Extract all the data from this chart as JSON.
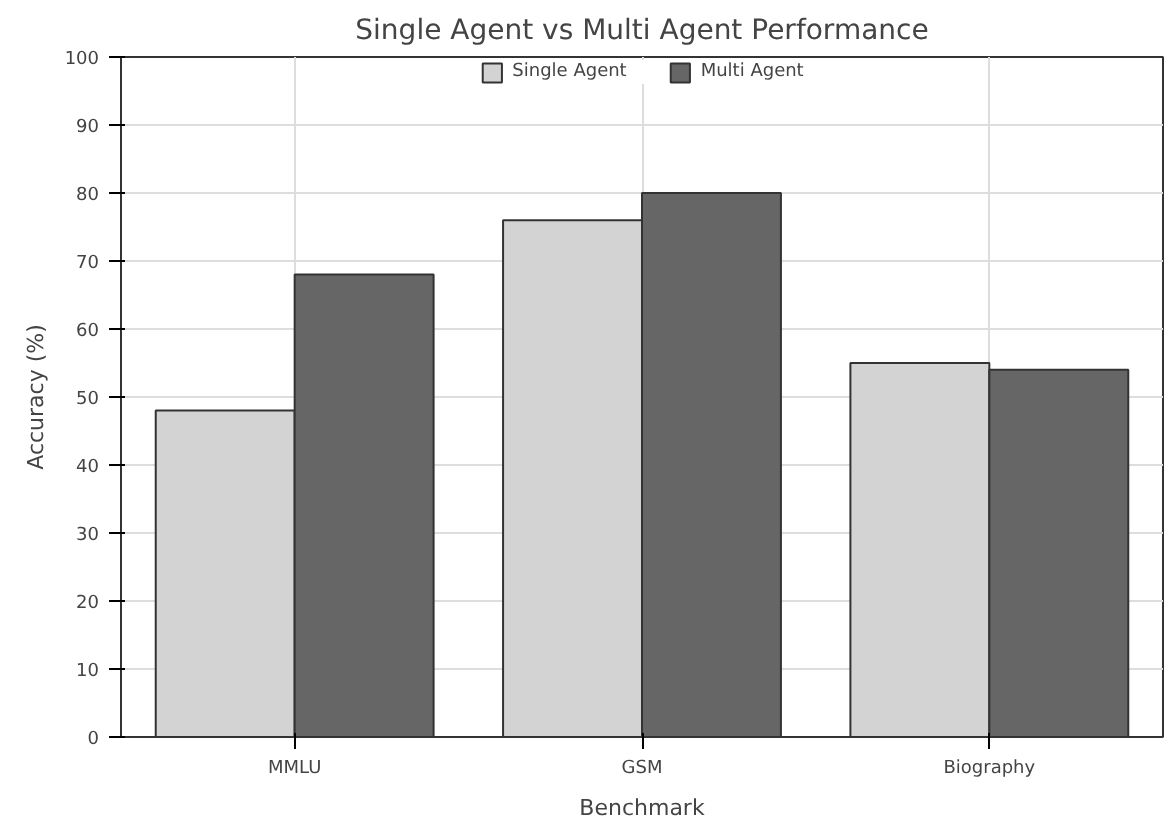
{
  "chart_data": {
    "type": "bar",
    "title": "Single Agent vs Multi Agent Performance",
    "xlabel": "Benchmark",
    "ylabel": "Accuracy (%)",
    "categories": [
      "MMLU",
      "GSM",
      "Biography"
    ],
    "series": [
      {
        "name": "Single Agent",
        "color": "#d3d3d3",
        "values": [
          48,
          76,
          55
        ]
      },
      {
        "name": "Multi Agent",
        "color": "#666666",
        "values": [
          68,
          80,
          54
        ]
      }
    ],
    "ylim": [
      0,
      100
    ],
    "yticks": [
      0,
      10,
      20,
      30,
      40,
      50,
      60,
      70,
      80,
      90,
      100
    ],
    "grid": true,
    "legend": "top"
  }
}
